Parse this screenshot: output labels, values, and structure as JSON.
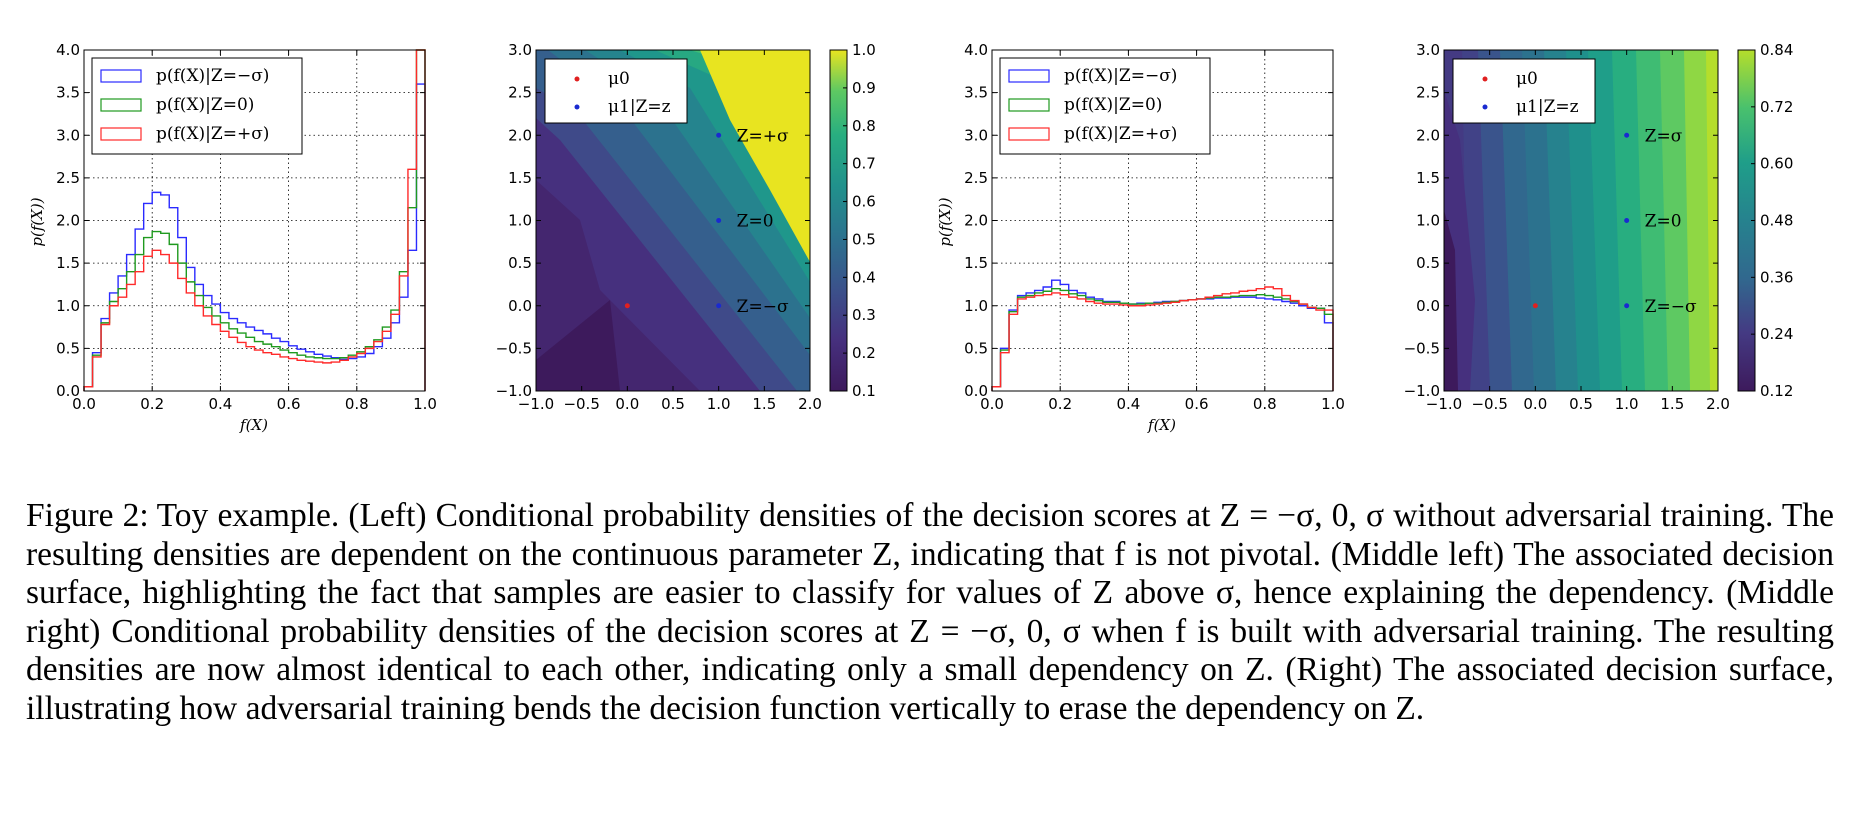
{
  "figure": {
    "panels": [
      {
        "id": "hist-left",
        "legend": [
          "p(f(X)|Z=−σ)",
          "p(f(X)|Z=0)",
          "p(f(X)|Z=+σ)"
        ],
        "xlabel": "f(X)",
        "ylabel": "p(f(X))",
        "xticks": [
          "0.0",
          "0.2",
          "0.4",
          "0.6",
          "0.8",
          "1.0"
        ],
        "yticks": [
          "0.0",
          "0.5",
          "1.0",
          "1.5",
          "2.0",
          "2.5",
          "3.0",
          "3.5",
          "4.0"
        ]
      },
      {
        "id": "surface-left",
        "legend": [
          "μ0",
          "μ1|Z=z"
        ],
        "annotations": [
          "Z=+σ",
          "Z=0",
          "Z=−σ"
        ],
        "xticks": [
          "−1.0",
          "−0.5",
          "0.0",
          "0.5",
          "1.0",
          "1.5",
          "2.0"
        ],
        "yticks": [
          "−1.0",
          "−0.5",
          "0.0",
          "0.5",
          "1.0",
          "1.5",
          "2.0",
          "2.5",
          "3.0"
        ],
        "colorbar_ticks": [
          "0.1",
          "0.2",
          "0.3",
          "0.4",
          "0.5",
          "0.6",
          "0.7",
          "0.8",
          "0.9",
          "1.0"
        ]
      },
      {
        "id": "hist-right",
        "legend": [
          "p(f(X)|Z=−σ)",
          "p(f(X)|Z=0)",
          "p(f(X)|Z=+σ)"
        ],
        "xlabel": "f(X)",
        "ylabel": "p(f(X))",
        "xticks": [
          "0.0",
          "0.2",
          "0.4",
          "0.6",
          "0.8",
          "1.0"
        ],
        "yticks": [
          "0.0",
          "0.5",
          "1.0",
          "1.5",
          "2.0",
          "2.5",
          "3.0",
          "3.5",
          "4.0"
        ]
      },
      {
        "id": "surface-right",
        "legend": [
          "μ0",
          "μ1|Z=z"
        ],
        "annotations": [
          "Z=σ",
          "Z=0",
          "Z=−σ"
        ],
        "xticks": [
          "−1.0",
          "−0.5",
          "0.0",
          "0.5",
          "1.0",
          "1.5",
          "2.0"
        ],
        "yticks": [
          "−1.0",
          "−0.5",
          "0.0",
          "0.5",
          "1.0",
          "1.5",
          "2.0",
          "2.5",
          "3.0"
        ],
        "colorbar_ticks": [
          "0.12",
          "0.24",
          "0.36",
          "0.48",
          "0.60",
          "0.72",
          "0.84"
        ]
      }
    ],
    "colors": {
      "minus_sigma": "#2a2aff",
      "zero": "#1f9a1f",
      "plus_sigma": "#ff2a2a",
      "mu0": "#e02020",
      "mu1": "#1a2ad0"
    }
  },
  "chart_data": [
    {
      "type": "histogram",
      "xlim": [
        0,
        1
      ],
      "ylim": [
        0,
        4
      ],
      "bin_edges": [
        0,
        0.025,
        0.05,
        0.075,
        0.1,
        0.125,
        0.15,
        0.175,
        0.2,
        0.225,
        0.25,
        0.275,
        0.3,
        0.325,
        0.35,
        0.375,
        0.4,
        0.425,
        0.45,
        0.475,
        0.5,
        0.525,
        0.55,
        0.575,
        0.6,
        0.625,
        0.65,
        0.675,
        0.7,
        0.725,
        0.75,
        0.775,
        0.8,
        0.825,
        0.85,
        0.875,
        0.9,
        0.925,
        0.95,
        0.975,
        1.0
      ],
      "series": [
        {
          "name": "p(f(X)|Z=−σ)",
          "color": "#2a2aff",
          "values": [
            0.05,
            0.45,
            0.85,
            1.15,
            1.35,
            1.6,
            1.9,
            2.2,
            2.33,
            2.3,
            2.15,
            1.8,
            1.45,
            1.25,
            1.12,
            1.02,
            0.92,
            0.85,
            0.8,
            0.75,
            0.71,
            0.67,
            0.62,
            0.58,
            0.53,
            0.49,
            0.46,
            0.43,
            0.41,
            0.39,
            0.37,
            0.38,
            0.4,
            0.44,
            0.52,
            0.62,
            0.8,
            1.1,
            1.65,
            3.6
          ]
        },
        {
          "name": "p(f(X)|Z=0)",
          "color": "#1f9a1f",
          "values": [
            0.05,
            0.42,
            0.8,
            1.05,
            1.2,
            1.4,
            1.6,
            1.8,
            1.87,
            1.85,
            1.72,
            1.5,
            1.28,
            1.12,
            0.98,
            0.88,
            0.8,
            0.73,
            0.68,
            0.63,
            0.58,
            0.55,
            0.52,
            0.48,
            0.45,
            0.42,
            0.4,
            0.39,
            0.38,
            0.38,
            0.39,
            0.42,
            0.46,
            0.52,
            0.6,
            0.75,
            0.95,
            1.4,
            2.15,
            4.0
          ]
        },
        {
          "name": "p(f(X)|Z=+σ)",
          "color": "#ff2a2a",
          "values": [
            0.05,
            0.4,
            0.78,
            1.0,
            1.1,
            1.25,
            1.4,
            1.58,
            1.65,
            1.6,
            1.5,
            1.32,
            1.15,
            1.0,
            0.88,
            0.78,
            0.7,
            0.63,
            0.57,
            0.52,
            0.48,
            0.45,
            0.43,
            0.4,
            0.38,
            0.36,
            0.35,
            0.34,
            0.33,
            0.34,
            0.36,
            0.4,
            0.44,
            0.5,
            0.58,
            0.7,
            0.9,
            1.35,
            2.6,
            4.0
          ]
        }
      ]
    },
    {
      "type": "heatmap",
      "xlim": [
        -1,
        2
      ],
      "ylim": [
        -1,
        3
      ],
      "colorbar_range": [
        0.1,
        1.0
      ],
      "mu0_points": [
        [
          0,
          0
        ]
      ],
      "mu1_points": [
        [
          1,
          2
        ],
        [
          1,
          1
        ],
        [
          1,
          0
        ]
      ],
      "point_labels": [
        "Z=+σ",
        "Z=0",
        "Z=−σ"
      ]
    },
    {
      "type": "histogram",
      "xlim": [
        0,
        1
      ],
      "ylim": [
        0,
        4
      ],
      "bin_edges": [
        0,
        0.025,
        0.05,
        0.075,
        0.1,
        0.125,
        0.15,
        0.175,
        0.2,
        0.225,
        0.25,
        0.275,
        0.3,
        0.325,
        0.35,
        0.375,
        0.4,
        0.425,
        0.45,
        0.475,
        0.5,
        0.525,
        0.55,
        0.575,
        0.6,
        0.625,
        0.65,
        0.675,
        0.7,
        0.725,
        0.75,
        0.775,
        0.8,
        0.825,
        0.85,
        0.875,
        0.9,
        0.925,
        0.95,
        0.975,
        1.0
      ],
      "series": [
        {
          "name": "p(f(X)|Z=−σ)",
          "color": "#2a2aff",
          "values": [
            0.05,
            0.5,
            0.95,
            1.12,
            1.15,
            1.18,
            1.22,
            1.3,
            1.25,
            1.18,
            1.15,
            1.1,
            1.08,
            1.05,
            1.05,
            1.03,
            1.02,
            1.03,
            1.03,
            1.04,
            1.05,
            1.05,
            1.06,
            1.07,
            1.08,
            1.08,
            1.09,
            1.09,
            1.1,
            1.1,
            1.1,
            1.09,
            1.08,
            1.07,
            1.05,
            1.03,
            1.0,
            0.97,
            0.97,
            0.8
          ]
        },
        {
          "name": "p(f(X)|Z=0)",
          "color": "#1f9a1f",
          "values": [
            0.05,
            0.48,
            0.93,
            1.1,
            1.12,
            1.15,
            1.17,
            1.2,
            1.18,
            1.14,
            1.12,
            1.08,
            1.06,
            1.04,
            1.04,
            1.03,
            1.02,
            1.02,
            1.03,
            1.03,
            1.04,
            1.05,
            1.06,
            1.07,
            1.08,
            1.09,
            1.1,
            1.1,
            1.11,
            1.12,
            1.12,
            1.13,
            1.12,
            1.1,
            1.08,
            1.05,
            1.02,
            0.98,
            0.97,
            0.9
          ]
        },
        {
          "name": "p(f(X)|Z=+σ)",
          "color": "#ff2a2a",
          "values": [
            0.05,
            0.45,
            0.9,
            1.08,
            1.1,
            1.12,
            1.13,
            1.15,
            1.13,
            1.1,
            1.08,
            1.05,
            1.03,
            1.02,
            1.02,
            1.01,
            1.0,
            1.0,
            1.01,
            1.02,
            1.03,
            1.04,
            1.06,
            1.07,
            1.08,
            1.1,
            1.12,
            1.14,
            1.15,
            1.17,
            1.18,
            1.2,
            1.22,
            1.2,
            1.12,
            1.06,
            1.02,
            0.98,
            0.95,
            0.95
          ]
        }
      ]
    },
    {
      "type": "heatmap",
      "xlim": [
        -1,
        2
      ],
      "ylim": [
        -1,
        3
      ],
      "colorbar_range": [
        0.12,
        0.84
      ],
      "mu0_points": [
        [
          0,
          0
        ]
      ],
      "mu1_points": [
        [
          1,
          2
        ],
        [
          1,
          1
        ],
        [
          1,
          0
        ]
      ],
      "point_labels": [
        "Z=σ",
        "Z=0",
        "Z=−σ"
      ]
    }
  ],
  "caption": {
    "label": "Figure 2:",
    "text": "Toy example. (Left) Conditional probability densities of the decision scores at Z = −σ, 0, σ without adversarial training. The resulting densities are dependent on the continuous parameter Z, indicating that f is not pivotal. (Middle left) The associated decision surface, highlighting the fact that samples are easier to classify for values of Z above σ, hence explaining the dependency. (Middle right) Conditional probability densities of the decision scores at Z = −σ, 0, σ when f is built with adversarial training. The resulting densities are now almost identical to each other, indicating only a small dependency on Z. (Right) The associated decision surface, illustrating how adversarial training bends the decision function vertically to erase the dependency on Z."
  }
}
